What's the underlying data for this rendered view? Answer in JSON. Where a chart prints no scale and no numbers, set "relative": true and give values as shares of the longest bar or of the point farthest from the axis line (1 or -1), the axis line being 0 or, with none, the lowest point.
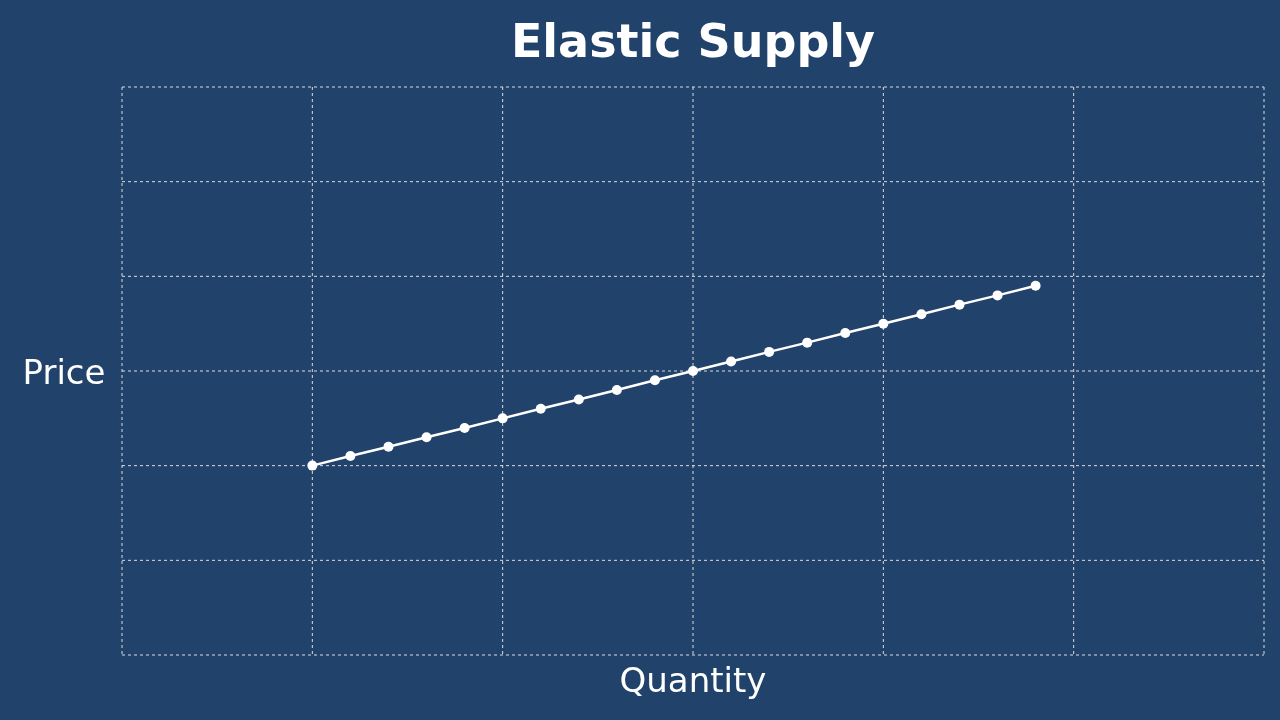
{
  "chart_data": {
    "type": "line",
    "title": "Elastic Supply",
    "xlabel": "Quantity",
    "ylabel": "Price",
    "relative": true,
    "grid": true,
    "marker": "circle",
    "line_style": "solid",
    "categories": [
      null,
      null,
      null,
      null,
      null,
      null,
      null,
      null,
      null,
      null,
      null,
      null,
      null,
      null,
      null,
      null,
      null,
      null,
      null,
      null,
      null,
      null,
      null,
      null,
      null,
      null,
      null,
      null,
      null,
      null,
      null
    ],
    "series": [
      {
        "color": "#ffffff",
        "values": [
          null,
          null,
          null,
          null,
          null,
          0.513,
          0.539,
          0.564,
          0.59,
          0.615,
          0.641,
          0.667,
          0.692,
          0.718,
          0.744,
          0.769,
          0.795,
          0.821,
          0.846,
          0.872,
          0.897,
          0.923,
          0.949,
          0.974,
          1,
          null,
          null,
          null,
          null,
          null,
          null
        ]
      }
    ]
  }
}
